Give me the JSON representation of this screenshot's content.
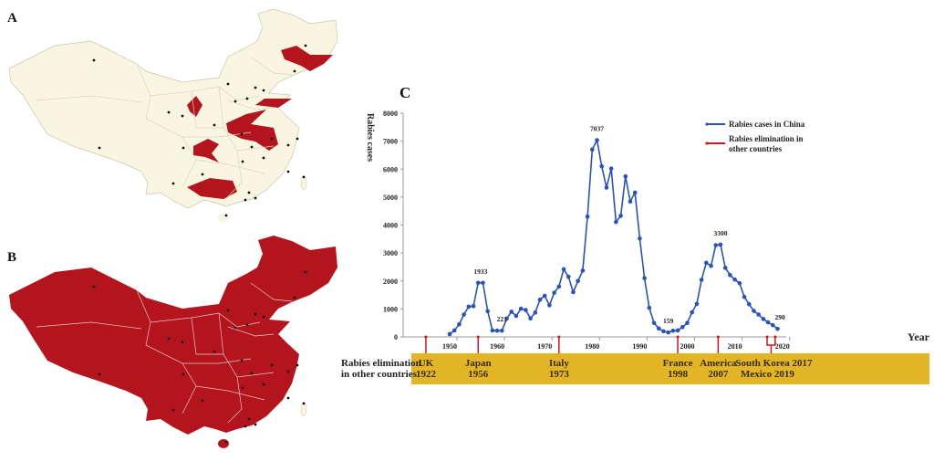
{
  "panels": {
    "a": "A",
    "b": "B",
    "c": "C"
  },
  "colors": {
    "line": "#2a52be",
    "marker": "#d0181c",
    "band": "#e2b526",
    "map_fill": "#f8f6e0",
    "map_red": "#b3141e"
  },
  "chart_data": {
    "type": "line",
    "title": "",
    "xlabel": "Year",
    "ylabel": "Rabies cases",
    "xlim": [
      1940,
      2020
    ],
    "ylim": [
      0,
      8000
    ],
    "x_ticks": [
      1950,
      1960,
      1970,
      1980,
      1990,
      2000,
      2010,
      2020
    ],
    "y_ticks": [
      0,
      1000,
      2000,
      3000,
      4000,
      5000,
      6000,
      7000,
      8000
    ],
    "series": [
      {
        "name": "Rabies cases in China",
        "x": [
          1950,
          1951,
          1952,
          1953,
          1954,
          1955,
          1956,
          1957,
          1958,
          1959,
          1960,
          1961,
          1962,
          1963,
          1964,
          1965,
          1966,
          1967,
          1968,
          1969,
          1970,
          1971,
          1972,
          1973,
          1974,
          1975,
          1976,
          1977,
          1978,
          1979,
          1980,
          1981,
          1982,
          1983,
          1984,
          1985,
          1986,
          1987,
          1988,
          1989,
          1990,
          1991,
          1992,
          1993,
          1994,
          1995,
          1996,
          1997,
          1998,
          1999,
          2000,
          2001,
          2002,
          2003,
          2004,
          2005,
          2006,
          2007,
          2008,
          2009,
          2010,
          2011,
          2012,
          2013,
          2014,
          2015,
          2016,
          2017,
          2018,
          2019
        ],
        "values": [
          100,
          230,
          450,
          800,
          1080,
          1100,
          1933,
          1933,
          920,
          230,
          221,
          221,
          650,
          900,
          750,
          1010,
          960,
          660,
          870,
          1330,
          1470,
          1130,
          1580,
          1800,
          2420,
          2150,
          1600,
          2000,
          2370,
          4300,
          6700,
          7037,
          6100,
          5340,
          6020,
          4110,
          4330,
          5740,
          4840,
          5160,
          3520,
          2100,
          1040,
          500,
          300,
          200,
          159,
          220,
          230,
          350,
          500,
          880,
          1180,
          2040,
          2650,
          2540,
          3280,
          3300,
          2470,
          2210,
          2050,
          1920,
          1430,
          1170,
          930,
          800,
          640,
          520,
          420,
          290
        ]
      }
    ],
    "data_labels": [
      {
        "x": 1956.5,
        "y": 1933,
        "text": "1933"
      },
      {
        "x": 1961,
        "y": 221,
        "text": "221"
      },
      {
        "x": 1981,
        "y": 7037,
        "text": "7037"
      },
      {
        "x": 1996,
        "y": 159,
        "text": "159"
      },
      {
        "x": 2007,
        "y": 3300,
        "text": "3300"
      },
      {
        "x": 2019.5,
        "y": 290,
        "text": "290"
      }
    ],
    "legend": {
      "position": "top-right",
      "entries": [
        "Rabies cases in China",
        "Rabies elimination in",
        "other countries"
      ]
    },
    "elimination": {
      "title_line1": "Rabies elimination",
      "title_line2": "in other countries",
      "events": [
        {
          "country": "UK",
          "year": "1922",
          "marker_year": 1945
        },
        {
          "country": "Japan",
          "year": "1956",
          "marker_year": 1956
        },
        {
          "country": "Italy",
          "year": "1973",
          "marker_year": 1973
        },
        {
          "country": "France",
          "year": "1998",
          "marker_year": 1998
        },
        {
          "country": "America",
          "year": "2007",
          "marker_year": 2006.5
        },
        {
          "country": "South Korea 2017",
          "year": "Mexico 2019",
          "marker_year": 2017
        }
      ]
    }
  }
}
